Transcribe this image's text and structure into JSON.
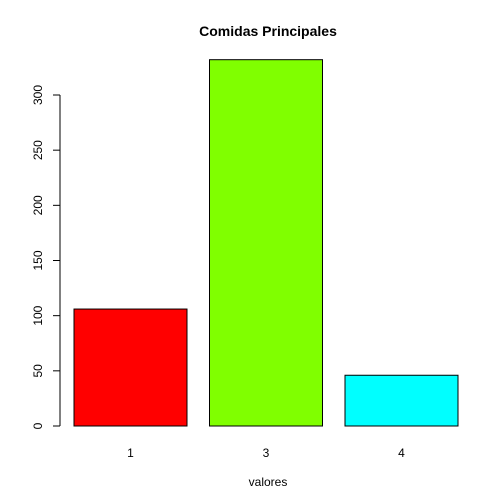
{
  "chart_data": {
    "type": "bar",
    "title": "Comidas Principales",
    "xlabel": "valores",
    "ylabel": "",
    "categories": [
      "1",
      "3",
      "4"
    ],
    "values": [
      106,
      332,
      46
    ],
    "colors": [
      "#ff0000",
      "#80ff00",
      "#00ffff"
    ],
    "ylim": [
      0,
      340
    ],
    "yticks": [
      0,
      50,
      100,
      150,
      200,
      250,
      300
    ],
    "grid": false,
    "legend": "none"
  }
}
